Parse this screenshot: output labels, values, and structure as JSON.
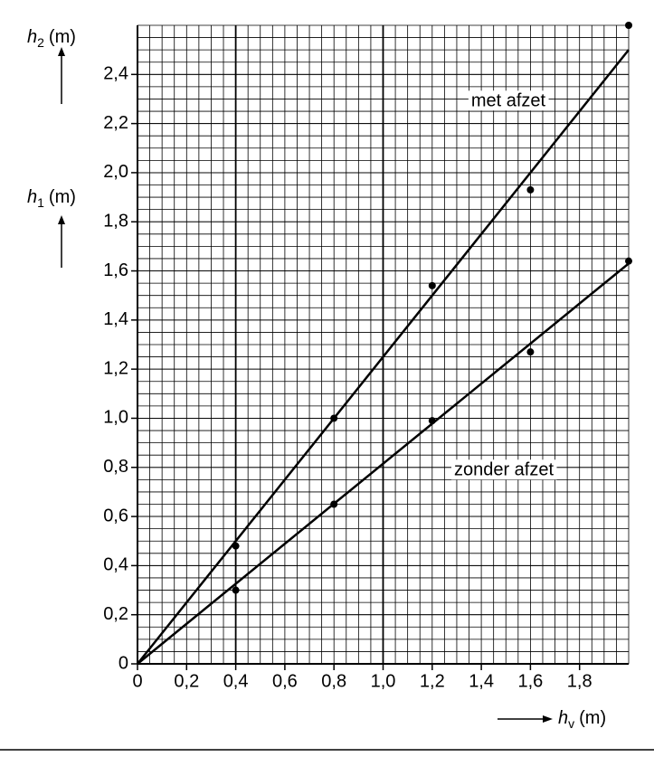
{
  "chart_data": {
    "type": "scatter",
    "y_labels": [
      {
        "symbol": "h",
        "sub": "2",
        "unit": "(m)"
      },
      {
        "symbol": "h",
        "sub": "1",
        "unit": "(m)"
      }
    ],
    "x_label": {
      "symbol": "h",
      "sub": "v",
      "unit": "(m)"
    },
    "xlim": [
      0,
      2.0
    ],
    "ylim": [
      0,
      2.6
    ],
    "xticks": [
      0,
      {
        "value": 0.2,
        "label": "0,2"
      },
      {
        "value": 0.4,
        "label": "0,4"
      },
      {
        "value": 0.6,
        "label": "0,6"
      },
      {
        "value": 0.8,
        "label": "0,8"
      },
      {
        "value": 1.0,
        "label": "1,0"
      },
      {
        "value": 1.2,
        "label": "1,2"
      },
      {
        "value": 1.4,
        "label": "1,4"
      },
      {
        "value": 1.6,
        "label": "1,6"
      },
      {
        "value": 1.8,
        "label": "1,8"
      }
    ],
    "yticks": [
      0,
      {
        "value": 0.2,
        "label": "0,2"
      },
      {
        "value": 0.4,
        "label": "0,4"
      },
      {
        "value": 0.6,
        "label": "0,6"
      },
      {
        "value": 0.8,
        "label": "0,8"
      },
      {
        "value": 1.0,
        "label": "1,0"
      },
      {
        "value": 1.2,
        "label": "1,2"
      },
      {
        "value": 1.4,
        "label": "1,4"
      },
      {
        "value": 1.6,
        "label": "1,6"
      },
      {
        "value": 1.8,
        "label": "1,8"
      },
      {
        "value": 2.0,
        "label": "2,0"
      },
      {
        "value": 2.2,
        "label": "2,2"
      },
      {
        "value": 2.4,
        "label": "2,4"
      }
    ],
    "grid": true,
    "heavy_gridlines_x": [
      0.4,
      1.0
    ],
    "color": "#000000",
    "series": [
      {
        "name": "met afzet",
        "x": [
          0.4,
          0.8,
          1.2,
          1.6,
          2.0
        ],
        "values": [
          0.48,
          1.0,
          1.54,
          1.93,
          2.6
        ],
        "line_x": [
          0,
          2.0
        ],
        "line_values": [
          0,
          2.5
        ]
      },
      {
        "name": "zonder afzet",
        "x": [
          0.4,
          0.8,
          1.2,
          1.6,
          2.0
        ],
        "values": [
          0.3,
          0.65,
          0.99,
          1.27,
          1.64
        ],
        "line_x": [
          0,
          2.0
        ],
        "line_values": [
          0,
          1.63
        ]
      }
    ]
  }
}
